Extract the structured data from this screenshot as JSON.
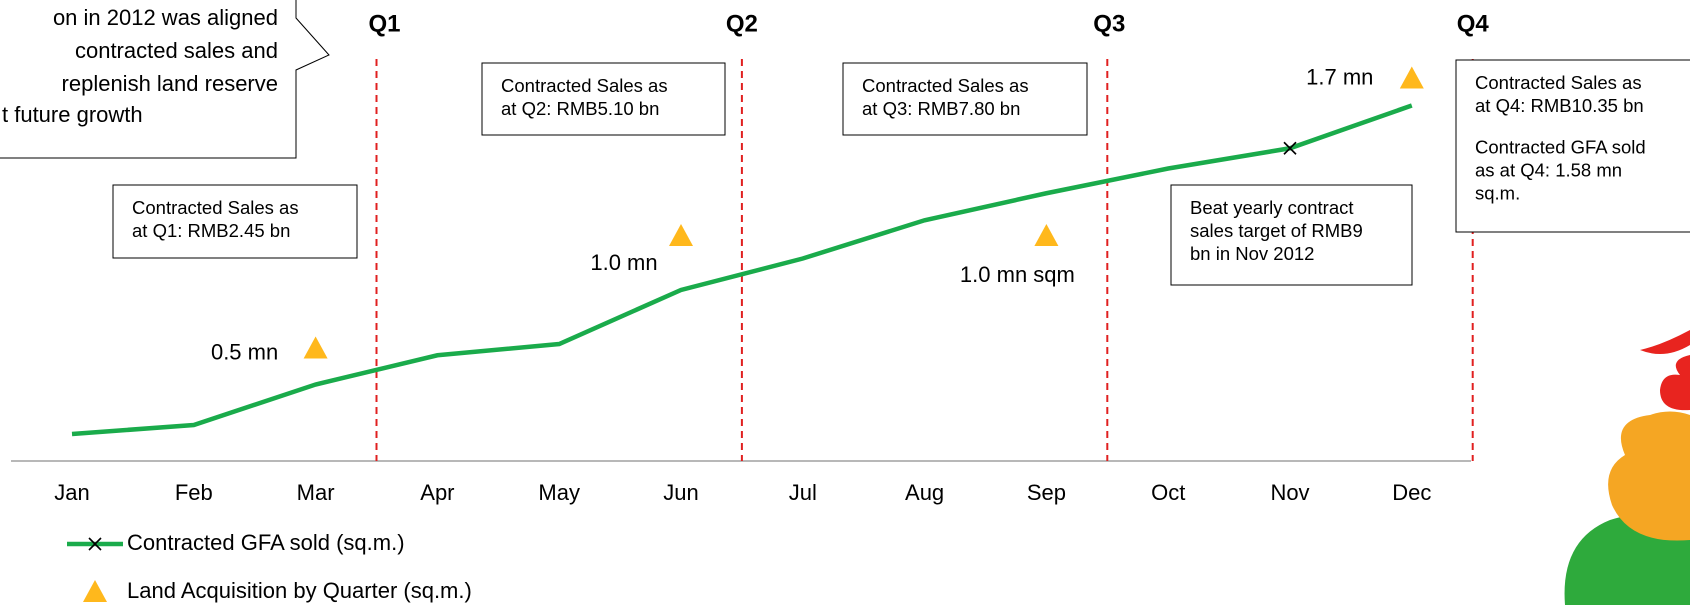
{
  "chart_data": {
    "type": "line",
    "categories": [
      "Jan",
      "Feb",
      "Mar",
      "Apr",
      "May",
      "Jun",
      "Jul",
      "Aug",
      "Sep",
      "Oct",
      "Nov",
      "Dec"
    ],
    "series": [
      {
        "name": "Contracted GFA sold (sq.m.)",
        "color": "#1aab4b",
        "values": [
          0.12,
          0.16,
          0.34,
          0.47,
          0.52,
          0.76,
          0.9,
          1.07,
          1.19,
          1.3,
          1.39,
          1.58
        ]
      },
      {
        "name": "Land Acquisition by Quarter (sq.m.)",
        "color": "#ffb81c",
        "marker": "triangle",
        "values": [
          null,
          null,
          0.5,
          null,
          null,
          1.0,
          null,
          null,
          1.0,
          null,
          null,
          1.7
        ],
        "value_labels": [
          null,
          null,
          "0.5 mn",
          null,
          null,
          "1.0 mn",
          null,
          null,
          "1.0 mn sqm",
          null,
          null,
          "1.7 mn"
        ]
      }
    ],
    "ylim": [
      0,
      1.8
    ],
    "quarters": [
      "Q1",
      "Q2",
      "Q3",
      "Q4"
    ],
    "annotations": [
      {
        "lines": [
          "Contracted Sales as",
          "at Q1: RMB2.45 bn"
        ]
      },
      {
        "lines": [
          "Contracted Sales as",
          "at Q2: RMB5.10 bn"
        ]
      },
      {
        "lines": [
          "Contracted Sales as",
          "at Q3: RMB7.80 bn"
        ]
      },
      {
        "lines": [
          "Contracted Sales as",
          "at Q4: RMB10.35 bn"
        ],
        "lines2": [
          "Contracted GFA sold",
          "as at Q4: 1.58 mn",
          "sq.m."
        ]
      },
      {
        "lines": [
          "Beat yearly contract",
          "sales target of RMB9",
          "bn in Nov 2012"
        ]
      }
    ],
    "callout": [
      "on in 2012 was aligned",
      "contracted sales and",
      "replenish land reserve",
      "t future growth"
    ]
  }
}
